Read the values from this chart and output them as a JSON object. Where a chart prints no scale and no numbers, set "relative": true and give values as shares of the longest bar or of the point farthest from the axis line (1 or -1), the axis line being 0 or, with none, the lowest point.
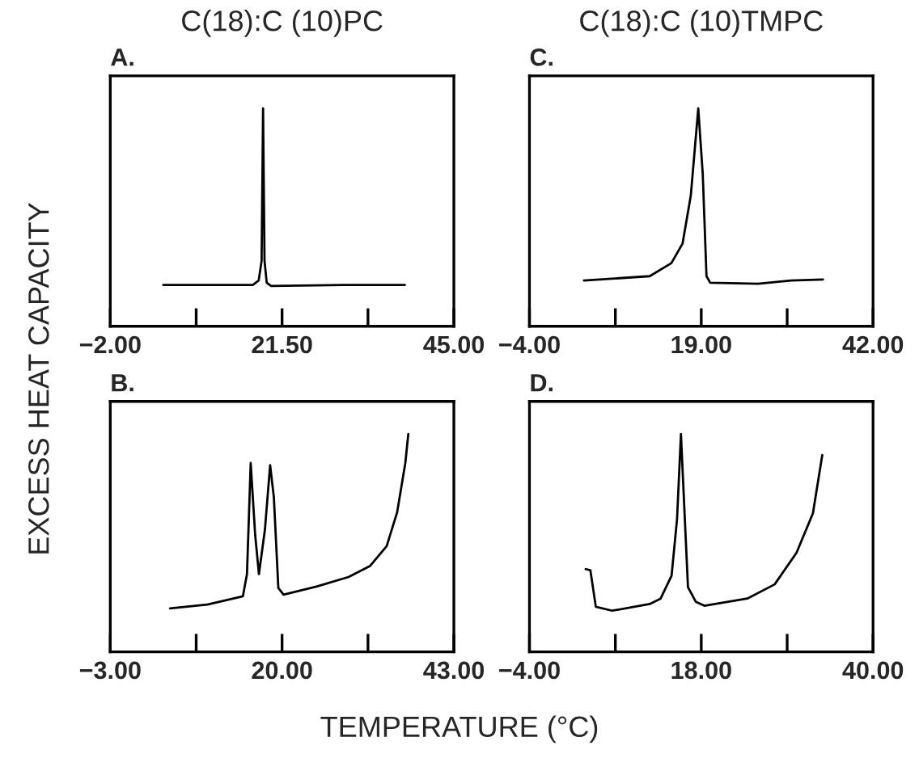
{
  "chart_data": [
    {
      "type": "line",
      "title": "C(18):C (10)PC",
      "ylabel": "EXCESS HEAT CAPACITY",
      "annotations": [
        "A."
      ],
      "relative": true,
      "xlim": [
        -2,
        45
      ],
      "xticks": [
        {
          "value": -2,
          "label": "−2.00"
        },
        {
          "value": 9.75,
          "label": null
        },
        {
          "value": 21.5,
          "label": "21.50"
        },
        {
          "value": 33.25,
          "label": null
        },
        {
          "value": 45,
          "label": "45.00"
        }
      ],
      "series": [
        {
          "color": "#000000",
          "x": [
            5.25,
            17.5,
            18.3,
            18.7,
            18.9,
            19.1,
            19.4,
            20,
            30,
            38.3
          ],
          "values": [
            0.19,
            0.19,
            0.21,
            0.3,
            1.0,
            0.3,
            0.2,
            0.185,
            0.19,
            0.19
          ]
        }
      ]
    },
    {
      "type": "line",
      "title": "C(18):C (10)TMPC",
      "annotations": [
        "C."
      ],
      "relative": true,
      "xlim": [
        -4,
        42
      ],
      "xticks": [
        {
          "value": -4,
          "label": "−4.00"
        },
        {
          "value": 7.5,
          "label": null
        },
        {
          "value": 19,
          "label": "19.00"
        },
        {
          "value": 30.5,
          "label": null
        },
        {
          "value": 42,
          "label": "42.00"
        }
      ],
      "series": [
        {
          "color": "#000000",
          "x": [
            3.3,
            12.1,
            15.0,
            16.5,
            17.6,
            18.6,
            19.2,
            19.7,
            20.2,
            26.6,
            31,
            35.3
          ],
          "values": [
            0.21,
            0.23,
            0.29,
            0.38,
            0.6,
            1.0,
            0.7,
            0.23,
            0.2,
            0.195,
            0.21,
            0.215
          ]
        }
      ]
    },
    {
      "type": "line",
      "annotations": [
        "B."
      ],
      "relative": true,
      "xlim": [
        -3,
        43
      ],
      "xticks": [
        {
          "value": -3,
          "label": "−3.00"
        },
        {
          "value": 8.5,
          "label": null
        },
        {
          "value": 20,
          "label": "20.00"
        },
        {
          "value": 31.5,
          "label": null
        },
        {
          "value": 43,
          "label": "43.00"
        }
      ],
      "series": [
        {
          "color": "#000000",
          "x": [
            5.0,
            10.0,
            14.75,
            15.3,
            15.8,
            16.4,
            16.9,
            17.7,
            18.4,
            18.9,
            19.5,
            20.2,
            24.6,
            28.9,
            31.8,
            34.0,
            35.4,
            36.5,
            36.9
          ],
          "values": [
            0.2,
            0.217,
            0.255,
            0.357,
            0.867,
            0.536,
            0.357,
            0.56,
            0.857,
            0.71,
            0.293,
            0.263,
            0.3,
            0.344,
            0.395,
            0.485,
            0.64,
            0.867,
            1.0
          ]
        }
      ]
    },
    {
      "type": "line",
      "xlabel": "TEMPERATURE (°C)",
      "annotations": [
        "D."
      ],
      "relative": true,
      "xlim": [
        -4,
        40
      ],
      "xticks": [
        {
          "value": -4,
          "label": "−4.00"
        },
        {
          "value": 7,
          "label": null
        },
        {
          "value": 18,
          "label": "18.00"
        },
        {
          "value": 29,
          "label": null
        },
        {
          "value": 40,
          "label": "40.00"
        }
      ],
      "series": [
        {
          "color": "#000000",
          "x": [
            3.2,
            3.8,
            4.5,
            6.6,
            11.4,
            12.8,
            14.2,
            14.9,
            15.4,
            16.0,
            16.3,
            17.3,
            18.4,
            23.9,
            27.4,
            30.2,
            32.3,
            33.5
          ],
          "values": [
            0.38,
            0.375,
            0.207,
            0.189,
            0.22,
            0.245,
            0.35,
            0.61,
            1.0,
            0.53,
            0.297,
            0.23,
            0.212,
            0.245,
            0.31,
            0.455,
            0.636,
            0.904
          ]
        }
      ]
    }
  ]
}
